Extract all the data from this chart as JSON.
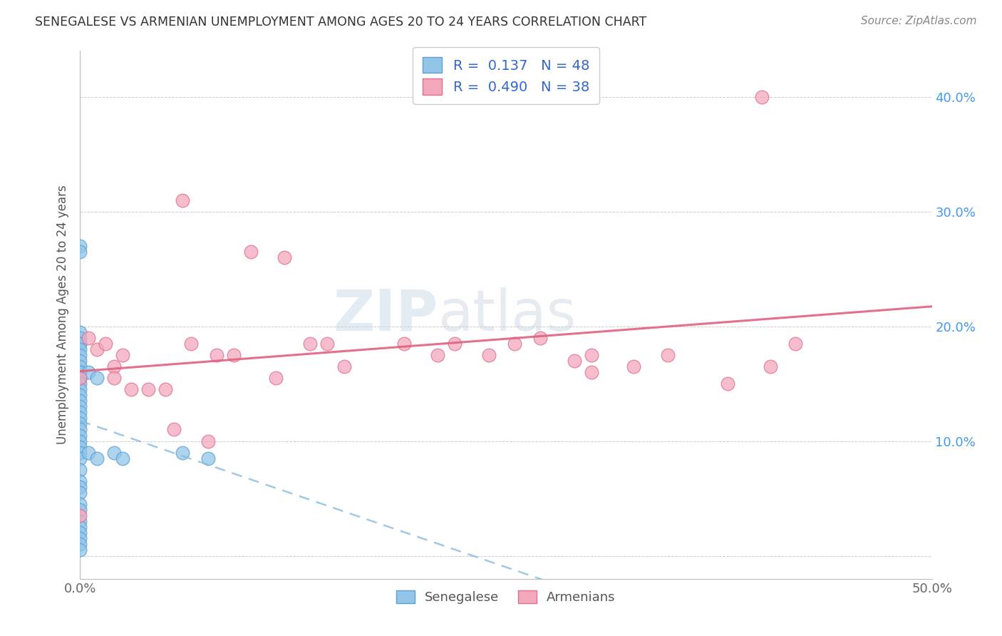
{
  "title": "SENEGALESE VS ARMENIAN UNEMPLOYMENT AMONG AGES 20 TO 24 YEARS CORRELATION CHART",
  "source": "Source: ZipAtlas.com",
  "ylabel": "Unemployment Among Ages 20 to 24 years",
  "xlim": [
    0.0,
    0.5
  ],
  "ylim": [
    -0.02,
    0.44
  ],
  "plot_ylim": [
    -0.02,
    0.44
  ],
  "xticks": [
    0.0,
    0.05,
    0.1,
    0.15,
    0.2,
    0.25,
    0.3,
    0.35,
    0.4,
    0.45,
    0.5
  ],
  "xticklabels": [
    "0.0%",
    "",
    "",
    "",
    "",
    "",
    "",
    "",
    "",
    "",
    "50.0%"
  ],
  "yticks": [
    0.0,
    0.1,
    0.2,
    0.3,
    0.4
  ],
  "yticklabels_right": [
    "",
    "10.0%",
    "20.0%",
    "30.0%",
    "40.0%"
  ],
  "watermark_zip": "ZIP",
  "watermark_atlas": "atlas",
  "senegalese_color": "#92C5E8",
  "armenian_color": "#F4A8BC",
  "senegalese_edge": "#5B9FD4",
  "armenian_edge": "#E07090",
  "R_senegalese": 0.137,
  "N_senegalese": 48,
  "R_armenian": 0.49,
  "N_armenian": 38,
  "senegalese_x": [
    0.0,
    0.0,
    0.0,
    0.0,
    0.0,
    0.0,
    0.0,
    0.0,
    0.0,
    0.0,
    0.0,
    0.0,
    0.0,
    0.0,
    0.0,
    0.0,
    0.0,
    0.0,
    0.0,
    0.0,
    0.0,
    0.0,
    0.0,
    0.0,
    0.0,
    0.0,
    0.0,
    0.0,
    0.0,
    0.0,
    0.0,
    0.0,
    0.0,
    0.0,
    0.0,
    0.0,
    0.0,
    0.0,
    0.0,
    0.0,
    0.005,
    0.005,
    0.01,
    0.01,
    0.02,
    0.025,
    0.06,
    0.075
  ],
  "senegalese_y": [
    0.27,
    0.265,
    0.195,
    0.19,
    0.185,
    0.185,
    0.18,
    0.175,
    0.17,
    0.165,
    0.16,
    0.16,
    0.155,
    0.155,
    0.15,
    0.145,
    0.14,
    0.135,
    0.13,
    0.125,
    0.12,
    0.115,
    0.11,
    0.105,
    0.1,
    0.095,
    0.09,
    0.085,
    0.075,
    0.065,
    0.06,
    0.055,
    0.045,
    0.04,
    0.03,
    0.025,
    0.02,
    0.015,
    0.01,
    0.005,
    0.16,
    0.09,
    0.155,
    0.085,
    0.09,
    0.085,
    0.09,
    0.085
  ],
  "armenian_x": [
    0.0,
    0.0,
    0.005,
    0.01,
    0.015,
    0.02,
    0.02,
    0.025,
    0.03,
    0.04,
    0.05,
    0.055,
    0.06,
    0.065,
    0.075,
    0.08,
    0.09,
    0.1,
    0.115,
    0.12,
    0.135,
    0.145,
    0.155,
    0.19,
    0.21,
    0.22,
    0.24,
    0.255,
    0.27,
    0.29,
    0.3,
    0.3,
    0.325,
    0.345,
    0.38,
    0.4,
    0.405,
    0.42
  ],
  "armenian_y": [
    0.035,
    0.155,
    0.19,
    0.18,
    0.185,
    0.165,
    0.155,
    0.175,
    0.145,
    0.145,
    0.145,
    0.11,
    0.31,
    0.185,
    0.1,
    0.175,
    0.175,
    0.265,
    0.155,
    0.26,
    0.185,
    0.185,
    0.165,
    0.185,
    0.175,
    0.185,
    0.175,
    0.185,
    0.19,
    0.17,
    0.16,
    0.175,
    0.165,
    0.175,
    0.15,
    0.4,
    0.165,
    0.185
  ],
  "background_color": "#FFFFFF",
  "grid_color": "#CCCCCC",
  "sen_line_color": "#88BBDD",
  "arm_line_color": "#E06080",
  "legend_text_color": "#3366CC",
  "title_color": "#333333",
  "source_color": "#888888",
  "ylabel_color": "#555555",
  "tick_color": "#4499EE"
}
